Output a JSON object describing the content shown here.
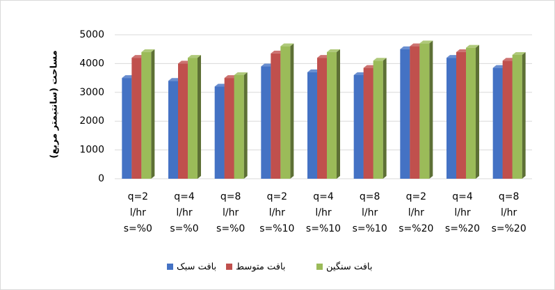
{
  "chart_data": {
    "type": "bar",
    "y_label": "مساحت (سانتیمتر مربع)",
    "categories": [
      [
        "q=2",
        "l/hr",
        "s=%0"
      ],
      [
        "q=4",
        "l/hr",
        "s=%0"
      ],
      [
        "q=8",
        "l/hr",
        "s=%0"
      ],
      [
        "q=2",
        "l/hr",
        "s=%10"
      ],
      [
        "q=4",
        "l/hr",
        "s=%10"
      ],
      [
        "q=8",
        "l/hr",
        "s=%10"
      ],
      [
        "q=2",
        "l/hr",
        "s=%20"
      ],
      [
        "q=4",
        "l/hr",
        "s=%20"
      ],
      [
        "q=8",
        "l/hr",
        "s=%20"
      ]
    ],
    "series": [
      {
        "name": "بافت سبک",
        "color": "#4472c4",
        "values": [
          3500,
          3400,
          3200,
          3900,
          3700,
          3600,
          4500,
          4200,
          3850
        ]
      },
      {
        "name": "بافت متوسط",
        "color": "#c0504d",
        "values": [
          4200,
          4000,
          3500,
          4350,
          4200,
          3850,
          4600,
          4400,
          4100
        ]
      },
      {
        "name": "بافت سنگین",
        "color": "#9bbb59",
        "values": [
          4400,
          4200,
          3600,
          4600,
          4400,
          4100,
          4700,
          4550,
          4300
        ]
      }
    ],
    "ylim": [
      0,
      5000
    ],
    "yticks": [
      0,
      1000,
      2000,
      3000,
      4000,
      5000
    ],
    "grid": true
  }
}
